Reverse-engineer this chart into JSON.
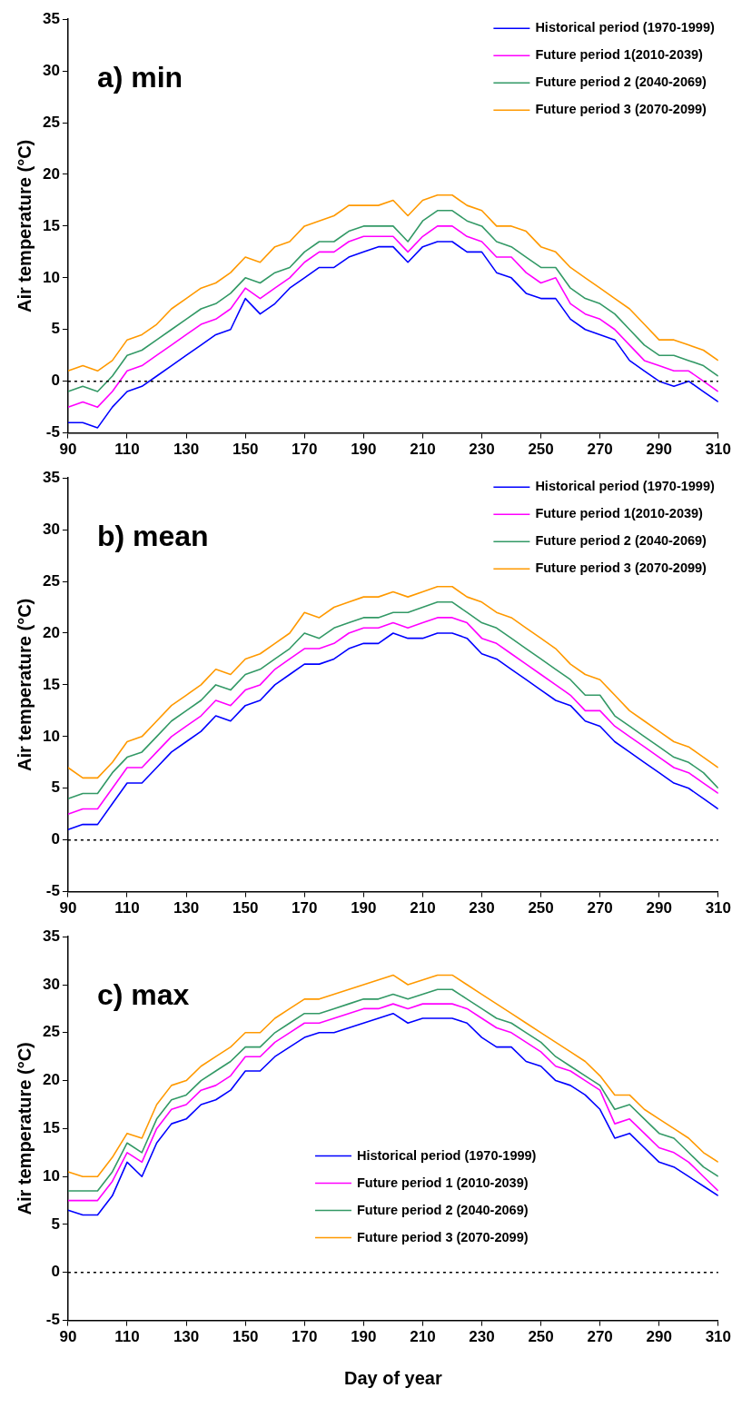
{
  "chart_data": [
    {
      "type": "line",
      "title": "a) min",
      "ylabel": "Air temperature (°C)",
      "xlim": [
        90,
        310
      ],
      "xticks": [
        90,
        110,
        130,
        150,
        170,
        190,
        210,
        230,
        250,
        270,
        290,
        310
      ],
      "ylim": [
        -5,
        35
      ],
      "yticks": [
        -5,
        0,
        5,
        10,
        15,
        20,
        25,
        30,
        35
      ],
      "grid": false,
      "legend": "top right",
      "marker": "none",
      "line_style": "solid",
      "x": [
        90,
        95,
        100,
        105,
        110,
        115,
        120,
        125,
        130,
        135,
        140,
        145,
        150,
        155,
        160,
        165,
        170,
        175,
        180,
        185,
        190,
        195,
        200,
        205,
        210,
        215,
        220,
        225,
        230,
        235,
        240,
        245,
        250,
        255,
        260,
        265,
        270,
        275,
        280,
        285,
        290,
        295,
        300,
        305,
        310
      ],
      "ref_lines": [
        {
          "axis": "y",
          "value": 0,
          "color": "#000000",
          "line_style": "dotted"
        }
      ],
      "series": [
        {
          "name": "Historical period (1970-1999)",
          "color": "#0000ff",
          "values": [
            -4,
            -4,
            -4.5,
            -2.5,
            -1,
            -0.5,
            0.5,
            1.5,
            2.5,
            3.5,
            4.5,
            5,
            8,
            6.5,
            7.5,
            9,
            10,
            11,
            11,
            12,
            12.5,
            13,
            13,
            11.5,
            13,
            13.5,
            13.5,
            12.5,
            12.5,
            10.5,
            10,
            8.5,
            8,
            8,
            6,
            5,
            4.5,
            4,
            2,
            1,
            0,
            -0.5,
            0,
            -1,
            -2
          ]
        },
        {
          "name": "Future period 1(2010-2039)",
          "color": "#ff00ff",
          "values": [
            -2.5,
            -2,
            -2.5,
            -1,
            1,
            1.5,
            2.5,
            3.5,
            4.5,
            5.5,
            6,
            7,
            9,
            8,
            9,
            10,
            11.5,
            12.5,
            12.5,
            13.5,
            14,
            14,
            14,
            12.5,
            14,
            15,
            15,
            14,
            13.5,
            12,
            12,
            10.5,
            9.5,
            10,
            7.5,
            6.5,
            6,
            5,
            3.5,
            2,
            1.5,
            1,
            1,
            0,
            -1
          ]
        },
        {
          "name": "Future period 2 (2040-2069)",
          "color": "#339966",
          "values": [
            -1,
            -0.5,
            -1,
            0.5,
            2.5,
            3,
            4,
            5,
            6,
            7,
            7.5,
            8.5,
            10,
            9.5,
            10.5,
            11,
            12.5,
            13.5,
            13.5,
            14.5,
            15,
            15,
            15,
            13.5,
            15.5,
            16.5,
            16.5,
            15.5,
            15,
            13.5,
            13,
            12,
            11,
            11,
            9,
            8,
            7.5,
            6.5,
            5,
            3.5,
            2.5,
            2.5,
            2,
            1.5,
            0.5
          ]
        },
        {
          "name": "Future period 3 (2070-2099)",
          "color": "#ff9900",
          "values": [
            1,
            1.5,
            1,
            2,
            4,
            4.5,
            5.5,
            7,
            8,
            9,
            9.5,
            10.5,
            12,
            11.5,
            13,
            13.5,
            15,
            15.5,
            16,
            17,
            17,
            17,
            17.5,
            16,
            17.5,
            18,
            18,
            17,
            16.5,
            15,
            15,
            14.5,
            13,
            12.5,
            11,
            10,
            9,
            8,
            7,
            5.5,
            4,
            4,
            3.5,
            3,
            2
          ]
        }
      ]
    },
    {
      "type": "line",
      "title": "b) mean",
      "ylabel": "Air temperature (°C)",
      "xlim": [
        90,
        310
      ],
      "xticks": [
        90,
        110,
        130,
        150,
        170,
        190,
        210,
        230,
        250,
        270,
        290,
        310
      ],
      "ylim": [
        -5,
        35
      ],
      "yticks": [
        -5,
        0,
        5,
        10,
        15,
        20,
        25,
        30,
        35
      ],
      "grid": false,
      "legend": "top right",
      "marker": "none",
      "line_style": "solid",
      "x": [
        90,
        95,
        100,
        105,
        110,
        115,
        120,
        125,
        130,
        135,
        140,
        145,
        150,
        155,
        160,
        165,
        170,
        175,
        180,
        185,
        190,
        195,
        200,
        205,
        210,
        215,
        220,
        225,
        230,
        235,
        240,
        245,
        250,
        255,
        260,
        265,
        270,
        275,
        280,
        285,
        290,
        295,
        300,
        305,
        310
      ],
      "ref_lines": [
        {
          "axis": "y",
          "value": 0,
          "color": "#000000",
          "line_style": "dotted"
        }
      ],
      "series": [
        {
          "name": "Historical period (1970-1999)",
          "color": "#0000ff",
          "values": [
            1,
            1.5,
            1.5,
            3.5,
            5.5,
            5.5,
            7,
            8.5,
            9.5,
            10.5,
            12,
            11.5,
            13,
            13.5,
            15,
            16,
            17,
            17,
            17.5,
            18.5,
            19,
            19,
            20,
            19.5,
            19.5,
            20,
            20,
            19.5,
            18,
            17.5,
            16.5,
            15.5,
            14.5,
            13.5,
            13,
            11.5,
            11,
            9.5,
            8.5,
            7.5,
            6.5,
            5.5,
            5,
            4,
            3
          ]
        },
        {
          "name": "Future period 1(2010-2039)",
          "color": "#ff00ff",
          "values": [
            2.5,
            3,
            3,
            5,
            7,
            7,
            8.5,
            10,
            11,
            12,
            13.5,
            13,
            14.5,
            15,
            16.5,
            17.5,
            18.5,
            18.5,
            19,
            20,
            20.5,
            20.5,
            21,
            20.5,
            21,
            21.5,
            21.5,
            21,
            19.5,
            19,
            18,
            17,
            16,
            15,
            14,
            12.5,
            12.5,
            11,
            10,
            9,
            8,
            7,
            6.5,
            5.5,
            4.5
          ]
        },
        {
          "name": "Future period 2 (2040-2069)",
          "color": "#339966",
          "values": [
            4,
            4.5,
            4.5,
            6.5,
            8,
            8.5,
            10,
            11.5,
            12.5,
            13.5,
            15,
            14.5,
            16,
            16.5,
            17.5,
            18.5,
            20,
            19.5,
            20.5,
            21,
            21.5,
            21.5,
            22,
            22,
            22.5,
            23,
            23,
            22,
            21,
            20.5,
            19.5,
            18.5,
            17.5,
            16.5,
            15.5,
            14,
            14,
            12,
            11,
            10,
            9,
            8,
            7.5,
            6.5,
            5
          ]
        },
        {
          "name": "Future period 3 (2070-2099)",
          "color": "#ff9900",
          "values": [
            7,
            6,
            6,
            7.5,
            9.5,
            10,
            11.5,
            13,
            14,
            15,
            16.5,
            16,
            17.5,
            18,
            19,
            20,
            22,
            21.5,
            22.5,
            23,
            23.5,
            23.5,
            24,
            23.5,
            24,
            24.5,
            24.5,
            23.5,
            23,
            22,
            21.5,
            20.5,
            19.5,
            18.5,
            17,
            16,
            15.5,
            14,
            12.5,
            11.5,
            10.5,
            9.5,
            9,
            8,
            7
          ]
        }
      ]
    },
    {
      "type": "line",
      "title": "c) max",
      "xlabel": "Day of year",
      "ylabel": "Air temperature (°C)",
      "xlim": [
        90,
        310
      ],
      "xticks": [
        90,
        110,
        130,
        150,
        170,
        190,
        210,
        230,
        250,
        270,
        290,
        310
      ],
      "ylim": [
        -5,
        35
      ],
      "yticks": [
        -5,
        0,
        5,
        10,
        15,
        20,
        25,
        30,
        35
      ],
      "grid": false,
      "legend": "bottom",
      "marker": "none",
      "line_style": "solid",
      "x": [
        90,
        95,
        100,
        105,
        110,
        115,
        120,
        125,
        130,
        135,
        140,
        145,
        150,
        155,
        160,
        165,
        170,
        175,
        180,
        185,
        190,
        195,
        200,
        205,
        210,
        215,
        220,
        225,
        230,
        235,
        240,
        245,
        250,
        255,
        260,
        265,
        270,
        275,
        280,
        285,
        290,
        295,
        300,
        305,
        310
      ],
      "ref_lines": [
        {
          "axis": "y",
          "value": 0,
          "color": "#000000",
          "line_style": "dotted"
        }
      ],
      "series": [
        {
          "name": "Historical period (1970-1999)",
          "color": "#0000ff",
          "values": [
            6.5,
            6,
            6,
            8,
            11.5,
            10,
            13.5,
            15.5,
            16,
            17.5,
            18,
            19,
            21,
            21,
            22.5,
            23.5,
            24.5,
            25,
            25,
            25.5,
            26,
            26.5,
            27,
            26,
            26.5,
            26.5,
            26.5,
            26,
            24.5,
            23.5,
            23.5,
            22,
            21.5,
            20,
            19.5,
            18.5,
            17,
            14,
            14.5,
            13,
            11.5,
            11,
            10,
            9,
            8
          ]
        },
        {
          "name": "Future period 1 (2010-2039)",
          "color": "#ff00ff",
          "values": [
            7.5,
            7.5,
            7.5,
            9.5,
            12.5,
            11.5,
            15,
            17,
            17.5,
            19,
            19.5,
            20.5,
            22.5,
            22.5,
            24,
            25,
            26,
            26,
            26.5,
            27,
            27.5,
            27.5,
            28,
            27.5,
            28,
            28,
            28,
            27.5,
            26.5,
            25.5,
            25,
            24,
            23,
            21.5,
            21,
            20,
            19,
            15.5,
            16,
            14.5,
            13,
            12.5,
            11.5,
            10,
            8.5
          ]
        },
        {
          "name": "Future period 2 (2040-2069)",
          "color": "#339966",
          "values": [
            8.5,
            8.5,
            8.5,
            10.5,
            13.5,
            12.5,
            16,
            18,
            18.5,
            20,
            21,
            22,
            23.5,
            23.5,
            25,
            26,
            27,
            27,
            27.5,
            28,
            28.5,
            28.5,
            29,
            28.5,
            29,
            29.5,
            29.5,
            28.5,
            27.5,
            26.5,
            26,
            25,
            24,
            22.5,
            21.5,
            20.5,
            19.5,
            17,
            17.5,
            16,
            14.5,
            14,
            12.5,
            11,
            10
          ]
        },
        {
          "name": "Future period 3 (2070-2099)",
          "color": "#ff9900",
          "values": [
            10.5,
            10,
            10,
            12,
            14.5,
            14,
            17.5,
            19.5,
            20,
            21.5,
            22.5,
            23.5,
            25,
            25,
            26.5,
            27.5,
            28.5,
            28.5,
            29,
            29.5,
            30,
            30.5,
            31,
            30,
            30.5,
            31,
            31,
            30,
            29,
            28,
            27,
            26,
            25,
            24,
            23,
            22,
            20.5,
            18.5,
            18.5,
            17,
            16,
            15,
            14,
            12.5,
            11.5
          ]
        }
      ]
    }
  ]
}
